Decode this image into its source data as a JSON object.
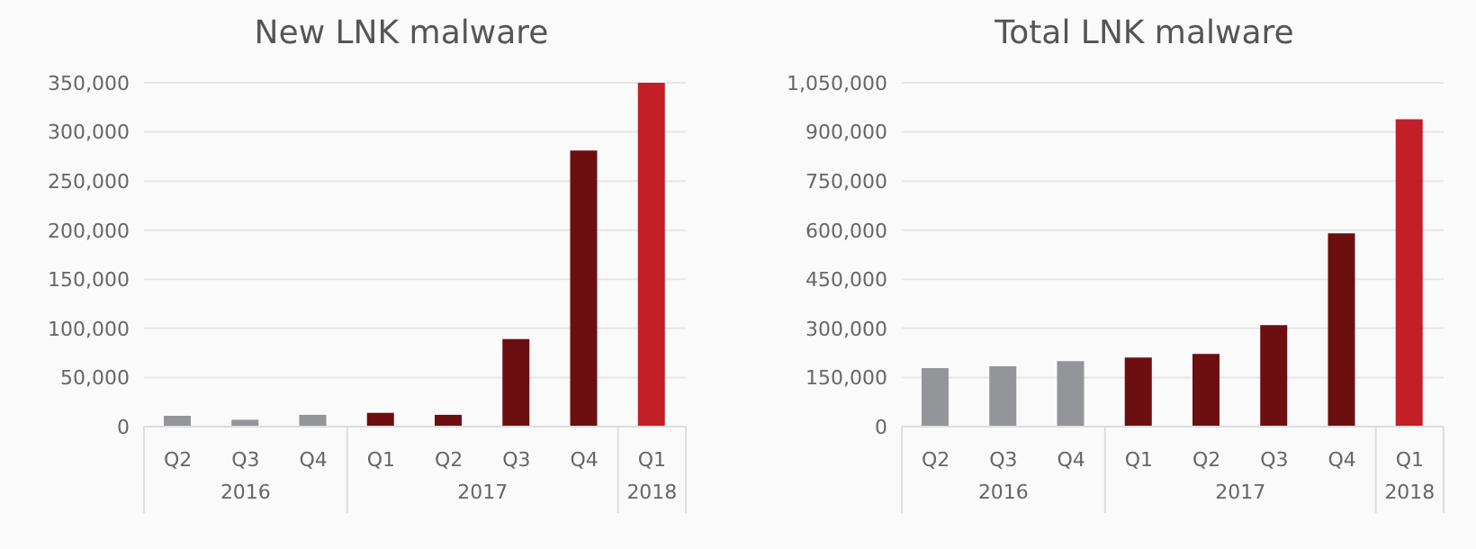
{
  "chart_data": [
    {
      "type": "bar",
      "title": "New LNK malware",
      "categories": [
        "Q2",
        "Q3",
        "Q4",
        "Q1",
        "Q2",
        "Q3",
        "Q4",
        "Q1"
      ],
      "values": [
        11000,
        7000,
        12000,
        14000,
        12000,
        89000,
        281000,
        350000
      ],
      "colors": [
        "#939598",
        "#939598",
        "#939598",
        "#6d0e10",
        "#6d0e10",
        "#6d0e10",
        "#6d0e10",
        "#c21f27"
      ],
      "annotations": [
        "2016",
        "2017",
        "2018"
      ],
      "ylim": [
        0,
        350000
      ],
      "yticks": [
        0,
        {
          "value": 50000,
          "label": "50,000"
        },
        {
          "value": 100000,
          "label": "100,000"
        },
        {
          "value": 150000,
          "label": "150,000"
        },
        {
          "value": 200000,
          "label": "200,000"
        },
        {
          "value": 250000,
          "label": "250,000"
        },
        {
          "value": 300000,
          "label": "300,000"
        },
        {
          "value": 350000,
          "label": "350,000"
        }
      ],
      "grid": "y"
    },
    {
      "type": "bar",
      "title": "Total LNK malware",
      "categories": [
        "Q2",
        "Q3",
        "Q4",
        "Q1",
        "Q2",
        "Q3",
        "Q4",
        "Q1"
      ],
      "values": [
        179000,
        184000,
        200000,
        211000,
        222000,
        310000,
        590000,
        939000
      ],
      "colors": [
        "#939598",
        "#939598",
        "#939598",
        "#6d0e10",
        "#6d0e10",
        "#6d0e10",
        "#6d0e10",
        "#c21f27"
      ],
      "annotations": [
        "2016",
        "2017",
        "2018"
      ],
      "ylim": [
        0,
        1050000
      ],
      "yticks": [
        0,
        {
          "value": 150000,
          "label": "150,000"
        },
        {
          "value": 300000,
          "label": "300,000"
        },
        {
          "value": 450000,
          "label": "450,000"
        },
        {
          "value": 600000,
          "label": "600,000"
        },
        {
          "value": 750000,
          "label": "750,000"
        },
        {
          "value": 900000,
          "label": "900,000"
        },
        {
          "value": 1050000,
          "label": "1,050,000"
        }
      ],
      "grid": "y"
    }
  ]
}
